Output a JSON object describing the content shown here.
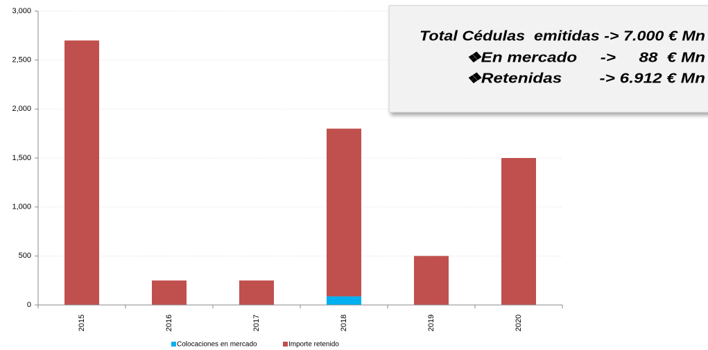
{
  "chart_data": {
    "type": "bar",
    "stacked": true,
    "categories": [
      "2015",
      "2016",
      "2017",
      "2018",
      "2019",
      "2020"
    ],
    "series": [
      {
        "name": "Colocaciones en mercado",
        "color": "#00b0f0",
        "values": [
          0,
          0,
          0,
          88,
          0,
          0
        ]
      },
      {
        "name": "Importe retenido",
        "color": "#c0504d",
        "values": [
          2700,
          250,
          250,
          1712,
          500,
          1500
        ]
      }
    ],
    "ylim": [
      0,
      3000
    ],
    "yticks": [
      0,
      500,
      {
        "value": 1000,
        "label": "1,000"
      },
      {
        "value": 1500,
        "label": "1,500"
      },
      {
        "value": 2000,
        "label": "2,000"
      },
      {
        "value": 2500,
        "label": "2,500"
      },
      {
        "value": 3000,
        "label": "3,000"
      }
    ],
    "grid": true,
    "legend": "bottom",
    "annotations": [
      "Total Cédulas  emitidas -> 7.000 € Mn",
      "❖En mercado     ->     88  € Mn",
      "❖Retenidas        -> 6.912 € Mn"
    ]
  }
}
